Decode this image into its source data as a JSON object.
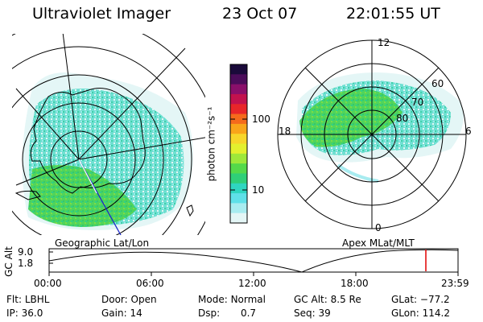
{
  "header": {
    "instrument": "Ultraviolet Imager",
    "date": "23 Oct 07",
    "time": "22:01:55 UT"
  },
  "panels": {
    "left_caption": "Geographic Lat/Lon",
    "right_caption": "Apex MLat/MLT",
    "mlt_labels": {
      "top": "12",
      "left": "18",
      "right": "6",
      "bottom": "0"
    },
    "mlat_labels": [
      "60",
      "70",
      "80"
    ]
  },
  "colorbar": {
    "unit_label": "photon cm⁻²s⁻¹",
    "ticks": [
      "100",
      "10"
    ],
    "colors": [
      "#1a0a3a",
      "#4b0c5a",
      "#8a0f6a",
      "#c2124e",
      "#e8262a",
      "#f56a1c",
      "#f9a51a",
      "#f7d62a",
      "#e3f02e",
      "#9ee83a",
      "#54d94a",
      "#2fcf78",
      "#2fd6c0",
      "#5fe0e8",
      "#a8ecf0",
      "#e4f6f6"
    ]
  },
  "altitude_plot": {
    "ylabel": "GC Alt",
    "yticks": [
      "9.0",
      "1.8"
    ],
    "xticks": [
      "00:00",
      "06:00",
      "12:00",
      "18:00",
      "23:59"
    ]
  },
  "status": {
    "row1": [
      {
        "label": "Flt:",
        "value": "LBHL"
      },
      {
        "label": "Door:",
        "value": "Open"
      },
      {
        "label": "Mode:",
        "value": "Normal"
      },
      {
        "label": "GC Alt:",
        "value": "8.5 Re"
      },
      {
        "label": "GLat:",
        "value": "−77.2"
      }
    ],
    "row2": [
      {
        "label": "IP:",
        "value": "36.0"
      },
      {
        "label": "Gain:",
        "value": "14"
      },
      {
        "label": "Dsp:",
        "value": "0.7"
      },
      {
        "label": "Seq:",
        "value": "39"
      },
      {
        "label": "GLon:",
        "value": "114.2"
      }
    ]
  }
}
